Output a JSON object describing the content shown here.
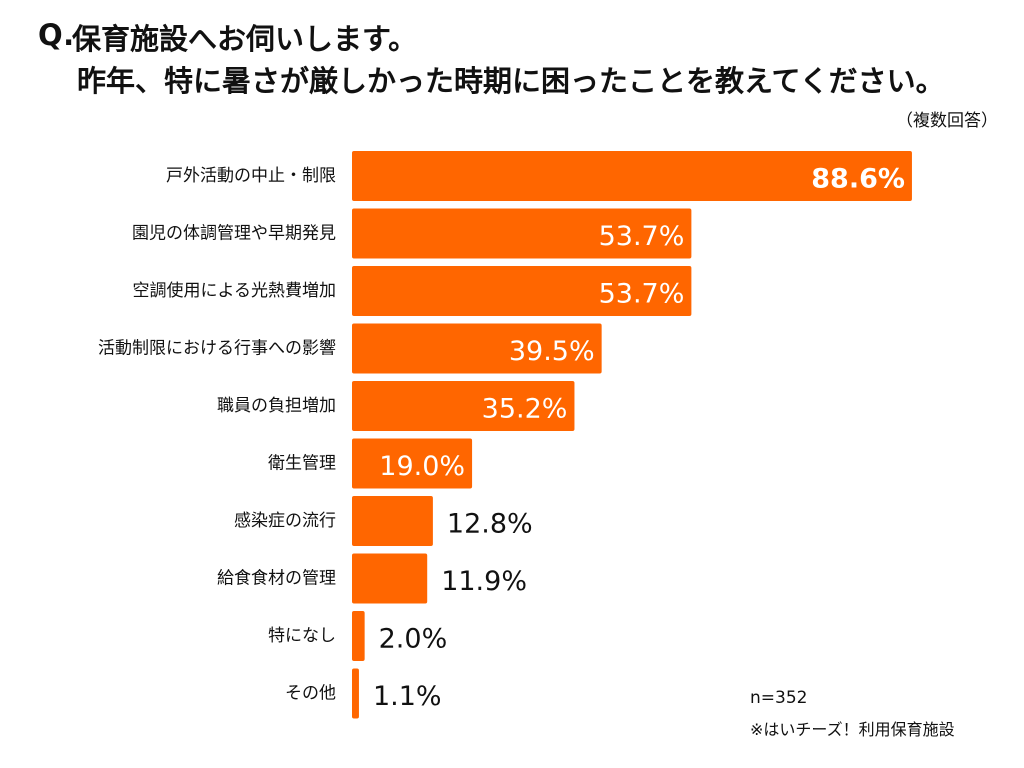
{
  "header": {
    "q_label": "Q.",
    "line1": "保育施設へお伺いします。",
    "line2": "昨年、特に暑さが厳しかった時期に困ったことを教えてください。",
    "note": "（複数回答）"
  },
  "footer": {
    "sample_size": "n=352",
    "source": "※はいチーズ！利用保育施設"
  },
  "chart_data": {
    "type": "bar",
    "orientation": "horizontal",
    "title": "昨年、特に暑さが厳しかった時期に困ったことを教えてください。",
    "categories": [
      "戸外活動の中止・制限",
      "園児の体調管理や早期発見",
      "空調使用による光熱費増加",
      "活動制限における行事への影響",
      "職員の負担増加",
      "衛生管理",
      "感染症の流行",
      "給食食材の管理",
      "特になし",
      "その他"
    ],
    "values": [
      88.6,
      53.7,
      53.7,
      39.5,
      35.2,
      19.0,
      12.8,
      11.9,
      2.0,
      1.1
    ],
    "value_labels": [
      "88.6%",
      "53.7%",
      "53.7%",
      "39.5%",
      "35.2%",
      "19.0%",
      "12.8%",
      "11.9%",
      "2.0%",
      "1.1%"
    ],
    "unit": "%",
    "xlim": [
      0,
      100
    ],
    "grid": false,
    "legend": "none",
    "bar_color": "#ff6600",
    "label_color_inside": "#ffffff",
    "label_color_outside": "#111111"
  }
}
